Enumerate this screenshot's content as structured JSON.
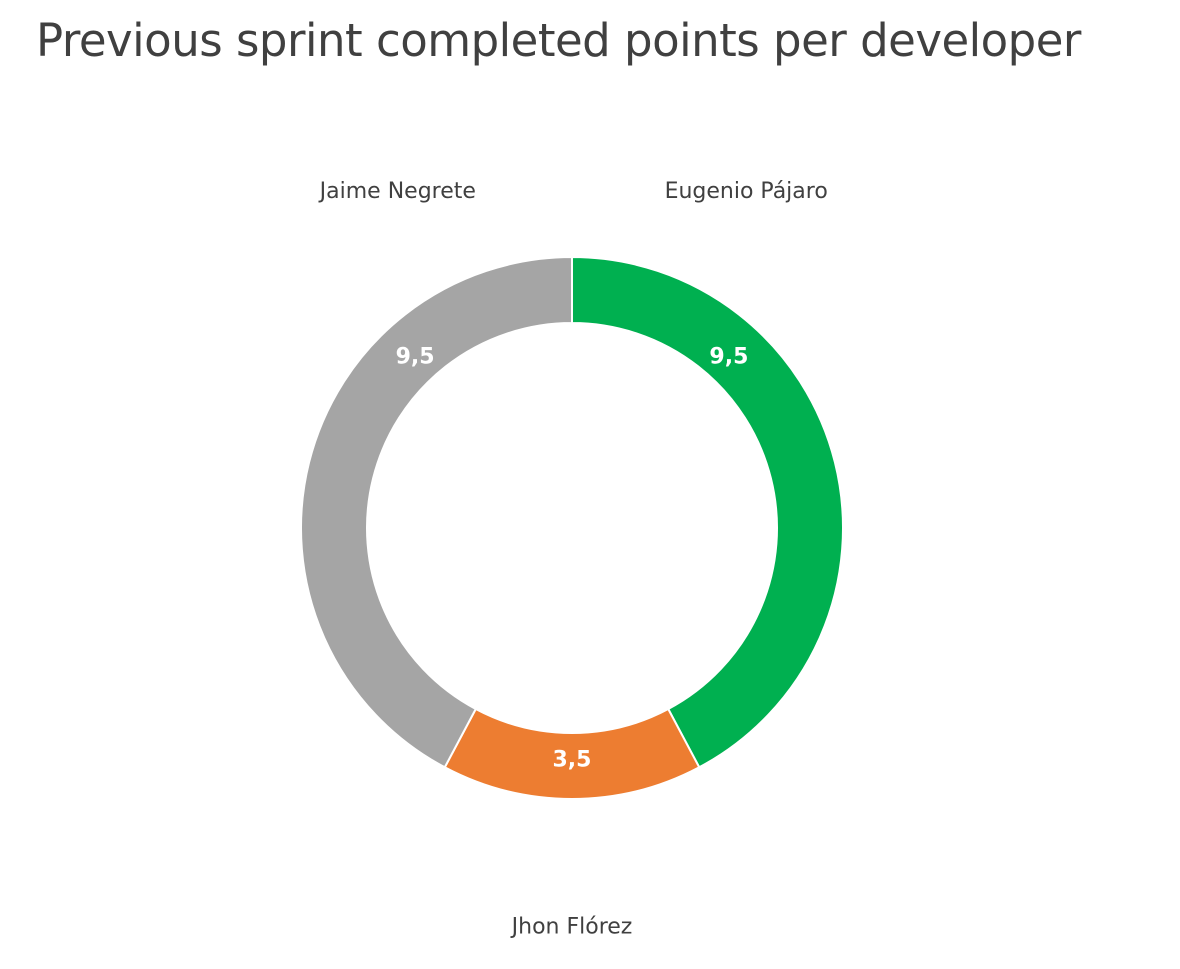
{
  "chart_data": {
    "type": "pie",
    "variant": "donut",
    "title": "Previous sprint completed points per developer",
    "categories": [
      "Eugenio Pájaro",
      "Jhon Flórez",
      "Jaime Negrete"
    ],
    "values": [
      9.5,
      3.5,
      9.5
    ],
    "value_labels": [
      "9,5",
      "3,5",
      "9,5"
    ],
    "colors": [
      "#00b050",
      "#ed7d31",
      "#a5a5a5"
    ],
    "start_angle_deg": 0,
    "direction": "clockwise",
    "legend": "none"
  }
}
